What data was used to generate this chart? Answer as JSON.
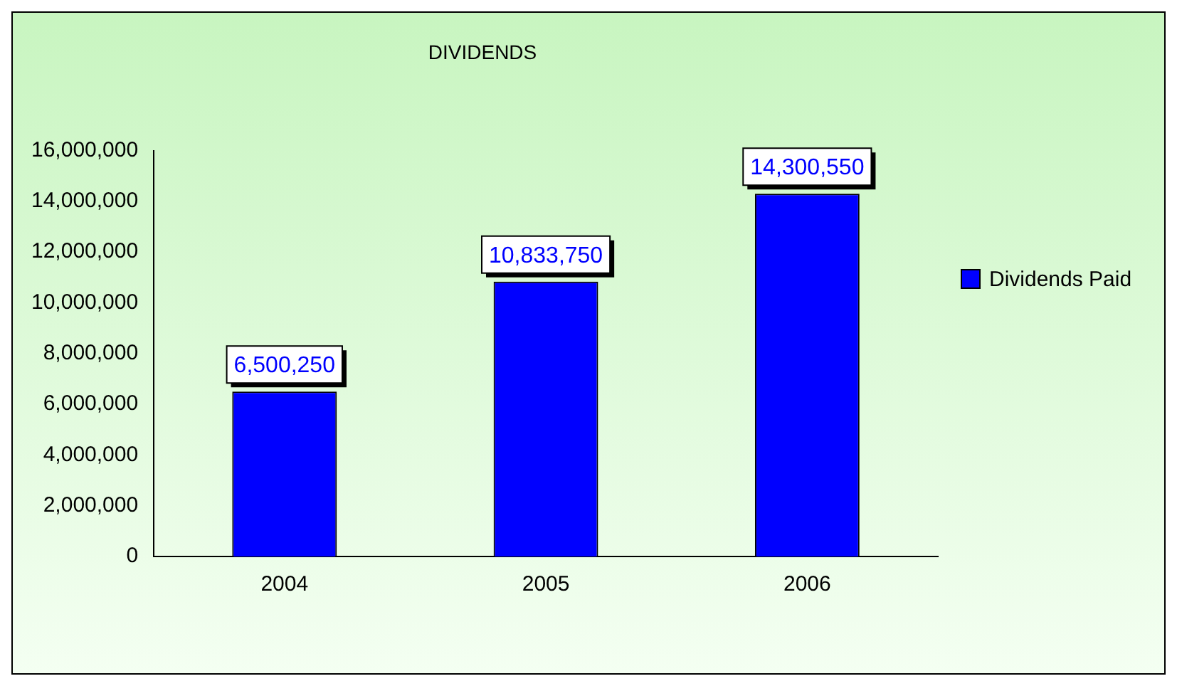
{
  "chart_data": {
    "type": "bar",
    "title": "DIVIDENDS",
    "categories": [
      "2004",
      "2005",
      "2006"
    ],
    "series": [
      {
        "name": "Dividends Paid",
        "color": "#0000ff",
        "values": [
          6500250,
          10833750,
          14300550
        ],
        "value_labels": [
          "6,500,250",
          "10,833,750",
          "14,300,550"
        ]
      }
    ],
    "ylim": [
      0,
      16000000
    ],
    "yticks": [
      {
        "value": 0,
        "label": "0"
      },
      {
        "value": 2000000,
        "label": "2,000,000"
      },
      {
        "value": 4000000,
        "label": "4,000,000"
      },
      {
        "value": 6000000,
        "label": "6,000,000"
      },
      {
        "value": 8000000,
        "label": "8,000,000"
      },
      {
        "value": 10000000,
        "label": "10,000,000"
      },
      {
        "value": 12000000,
        "label": "12,000,000"
      },
      {
        "value": 14000000,
        "label": "14,000,000"
      },
      {
        "value": 16000000,
        "label": "16,000,000"
      }
    ],
    "grid": false,
    "legend": "right"
  }
}
